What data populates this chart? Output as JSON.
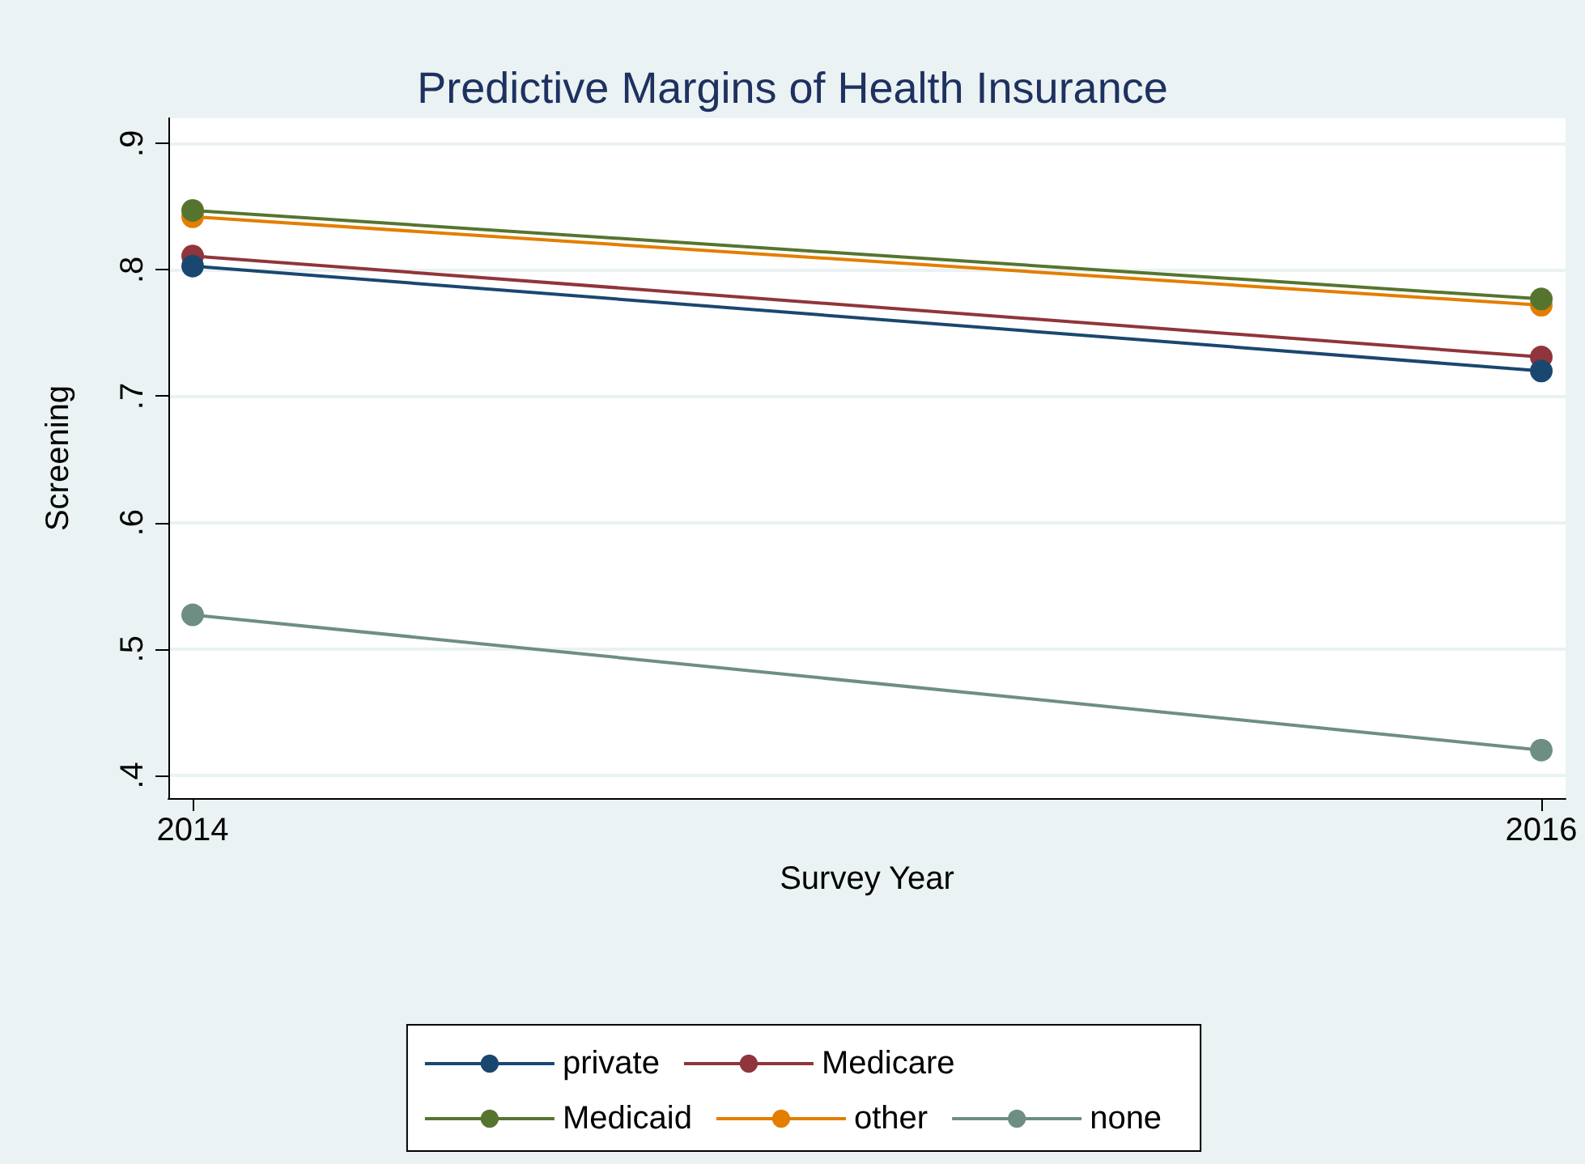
{
  "chart_data": {
    "type": "line",
    "title": "Predictive Margins of Health Insurance",
    "xlabel": "Survey Year",
    "ylabel": "Screening",
    "x": [
      2014,
      2016
    ],
    "xlim": [
      2013.964,
      2016.036
    ],
    "xticks": [
      2014,
      2016
    ],
    "ylim": [
      0.382,
      0.92
    ],
    "yticks": [
      {
        "value": 0.4,
        "label": ".4"
      },
      {
        "value": 0.5,
        "label": ".5"
      },
      {
        "value": 0.6,
        "label": ".6"
      },
      {
        "value": 0.7,
        "label": ".7"
      },
      {
        "value": 0.8,
        "label": ".8"
      },
      {
        "value": 0.9,
        "label": ".9"
      }
    ],
    "grid": "y",
    "legend": "bottom",
    "marker": "circle",
    "line_style": "solid",
    "series": [
      {
        "name": "private",
        "color": "#1a476f",
        "values": [
          0.803,
          0.72
        ]
      },
      {
        "name": "Medicare",
        "color": "#90353b",
        "values": [
          0.811,
          0.731
        ]
      },
      {
        "name": "Medicaid",
        "color": "#55752f",
        "values": [
          0.847,
          0.777
        ]
      },
      {
        "name": "other",
        "color": "#e37e00",
        "values": [
          0.842,
          0.772
        ]
      },
      {
        "name": "none",
        "color": "#6e8e84",
        "values": [
          0.527,
          0.42
        ]
      }
    ]
  }
}
